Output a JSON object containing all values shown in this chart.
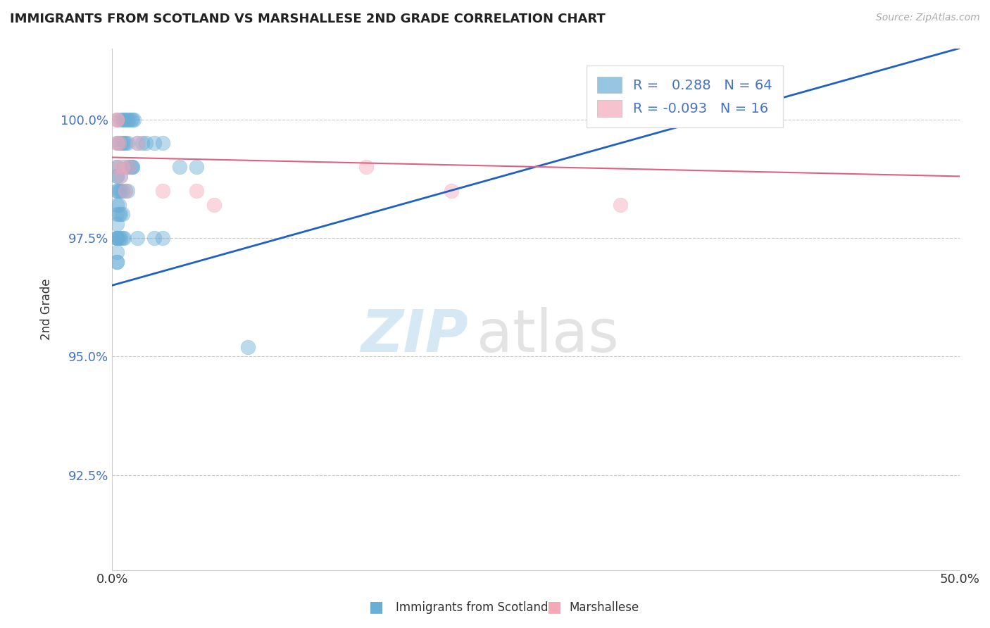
{
  "title": "IMMIGRANTS FROM SCOTLAND VS MARSHALLESE 2ND GRADE CORRELATION CHART",
  "source_text": "Source: ZipAtlas.com",
  "ylabel": "2nd Grade",
  "xlim": [
    0.0,
    50.0
  ],
  "ylim": [
    90.5,
    101.5
  ],
  "yticks": [
    92.5,
    95.0,
    97.5,
    100.0
  ],
  "ytick_labels": [
    "92.5%",
    "95.0%",
    "97.5%",
    "100.0%"
  ],
  "xticks": [
    0.0,
    50.0
  ],
  "xtick_labels": [
    "0.0%",
    "50.0%"
  ],
  "blue_R": 0.288,
  "blue_N": 64,
  "pink_R": -0.093,
  "pink_N": 16,
  "blue_color": "#6aaed6",
  "pink_color": "#f4a8b8",
  "blue_line_color": "#2060c0",
  "pink_line_color": "#e06080",
  "legend_label_blue": "Immigrants from Scotland",
  "legend_label_pink": "Marshallese",
  "blue_x": [
    0.3,
    0.5,
    0.6,
    0.7,
    0.8,
    0.9,
    1.0,
    1.1,
    1.2,
    1.3,
    0.3,
    0.4,
    0.5,
    0.6,
    0.7,
    0.8,
    0.9,
    1.0,
    1.1,
    1.2,
    0.3,
    0.3,
    0.3,
    0.3,
    0.3,
    0.3,
    0.3,
    0.3,
    0.3,
    0.3,
    0.4,
    0.4,
    0.4,
    0.5,
    0.5,
    0.5,
    0.6,
    0.6,
    0.7,
    0.8,
    0.9,
    1.0,
    1.2,
    1.5,
    1.8,
    2.0,
    2.5,
    3.0,
    4.0,
    5.0,
    0.3,
    0.3,
    0.3,
    0.3,
    0.3,
    0.3,
    0.4,
    0.5,
    0.6,
    0.7,
    1.5,
    2.5,
    3.0,
    8.0
  ],
  "blue_y": [
    100.0,
    100.0,
    100.0,
    100.0,
    100.0,
    100.0,
    100.0,
    100.0,
    100.0,
    100.0,
    99.5,
    99.5,
    99.5,
    99.5,
    99.5,
    99.5,
    99.5,
    99.0,
    99.0,
    99.0,
    99.0,
    99.0,
    98.8,
    98.8,
    98.5,
    98.5,
    98.2,
    98.0,
    97.8,
    97.5,
    98.5,
    98.2,
    98.0,
    98.8,
    98.5,
    98.0,
    98.5,
    98.0,
    99.0,
    98.5,
    98.5,
    99.0,
    99.0,
    99.5,
    99.5,
    99.5,
    99.5,
    99.5,
    99.0,
    99.0,
    97.5,
    97.5,
    97.5,
    97.2,
    97.0,
    97.0,
    97.5,
    97.5,
    97.5,
    97.5,
    97.5,
    97.5,
    97.5,
    95.2
  ],
  "pink_x": [
    0.3,
    0.3,
    0.3,
    0.3,
    0.4,
    0.5,
    0.6,
    0.8,
    1.0,
    1.5,
    3.0,
    5.0,
    6.0,
    15.0,
    20.0,
    30.0
  ],
  "pink_y": [
    100.0,
    100.0,
    99.5,
    99.0,
    99.5,
    98.8,
    99.0,
    98.5,
    99.0,
    99.5,
    98.5,
    98.5,
    98.2,
    99.0,
    98.5,
    98.2
  ],
  "blue_trend_x": [
    0.0,
    50.0
  ],
  "blue_trend_y": [
    96.5,
    101.5
  ],
  "pink_trend_x": [
    0.0,
    50.0
  ],
  "pink_trend_y": [
    99.2,
    98.8
  ]
}
